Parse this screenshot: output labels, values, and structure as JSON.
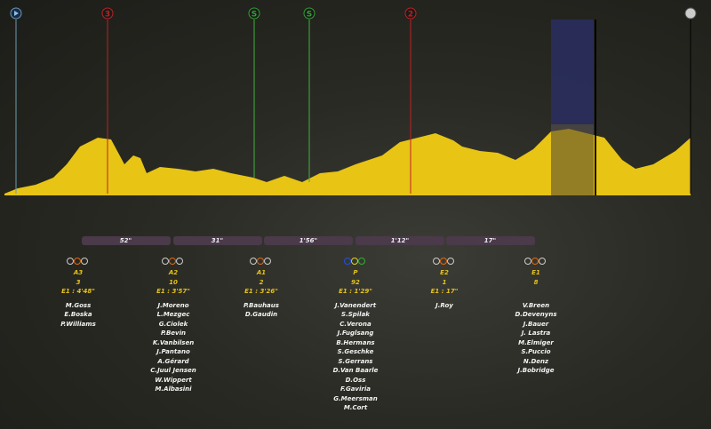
{
  "markers": [
    "3",
    "S",
    "S",
    "2"
  ],
  "gaps": [
    "52\"",
    "31\"",
    "1'56\"",
    "1'12\"",
    "17\""
  ],
  "groups": [
    {
      "code": "A3",
      "count": 3,
      "time": "E1 : 4'48\"",
      "riders": [
        "M.Goss",
        "E.Boska",
        "P.Williams"
      ]
    },
    {
      "code": "A2",
      "count": 10,
      "time": "E1 : 3'57\"",
      "riders": [
        "J.Moreno",
        "L.Mezgec",
        "G.Ciolek",
        "P.Bevin",
        "K.Vanbilsen",
        "J.Pantano",
        "A.Gérard",
        "C.Juul Jensen",
        "W.Wippert",
        "M.Albasini"
      ]
    },
    {
      "code": "A1",
      "count": 2,
      "time": "E1 : 3'26\"",
      "riders": [
        "P.Bauhaus",
        "D.Gaudin"
      ]
    },
    {
      "code": "P",
      "count": 92,
      "time": "E1 : 1'29\"",
      "riders": [
        "J.Vanendert",
        "S.Spilak",
        "C.Verona",
        "J.Fuglsang",
        "B.Hermans",
        "S.Geschke",
        "S.Gerrans",
        "D.Van Baarle",
        "D.Oss",
        "F.Gaviria",
        "G.Meersman",
        "M.Cort"
      ]
    },
    {
      "code": "E2",
      "count": 1,
      "time": "E1 : 17\"",
      "riders": [
        "J.Roy"
      ]
    },
    {
      "code": "E1",
      "count": 8,
      "riders": [
        "V.Breen",
        "D.Devenyns",
        "J.Bauer",
        "J. Lastra",
        "M.Elmiger",
        "S.Puccio",
        "N.Denz",
        "J.Bobridge"
      ]
    }
  ]
}
